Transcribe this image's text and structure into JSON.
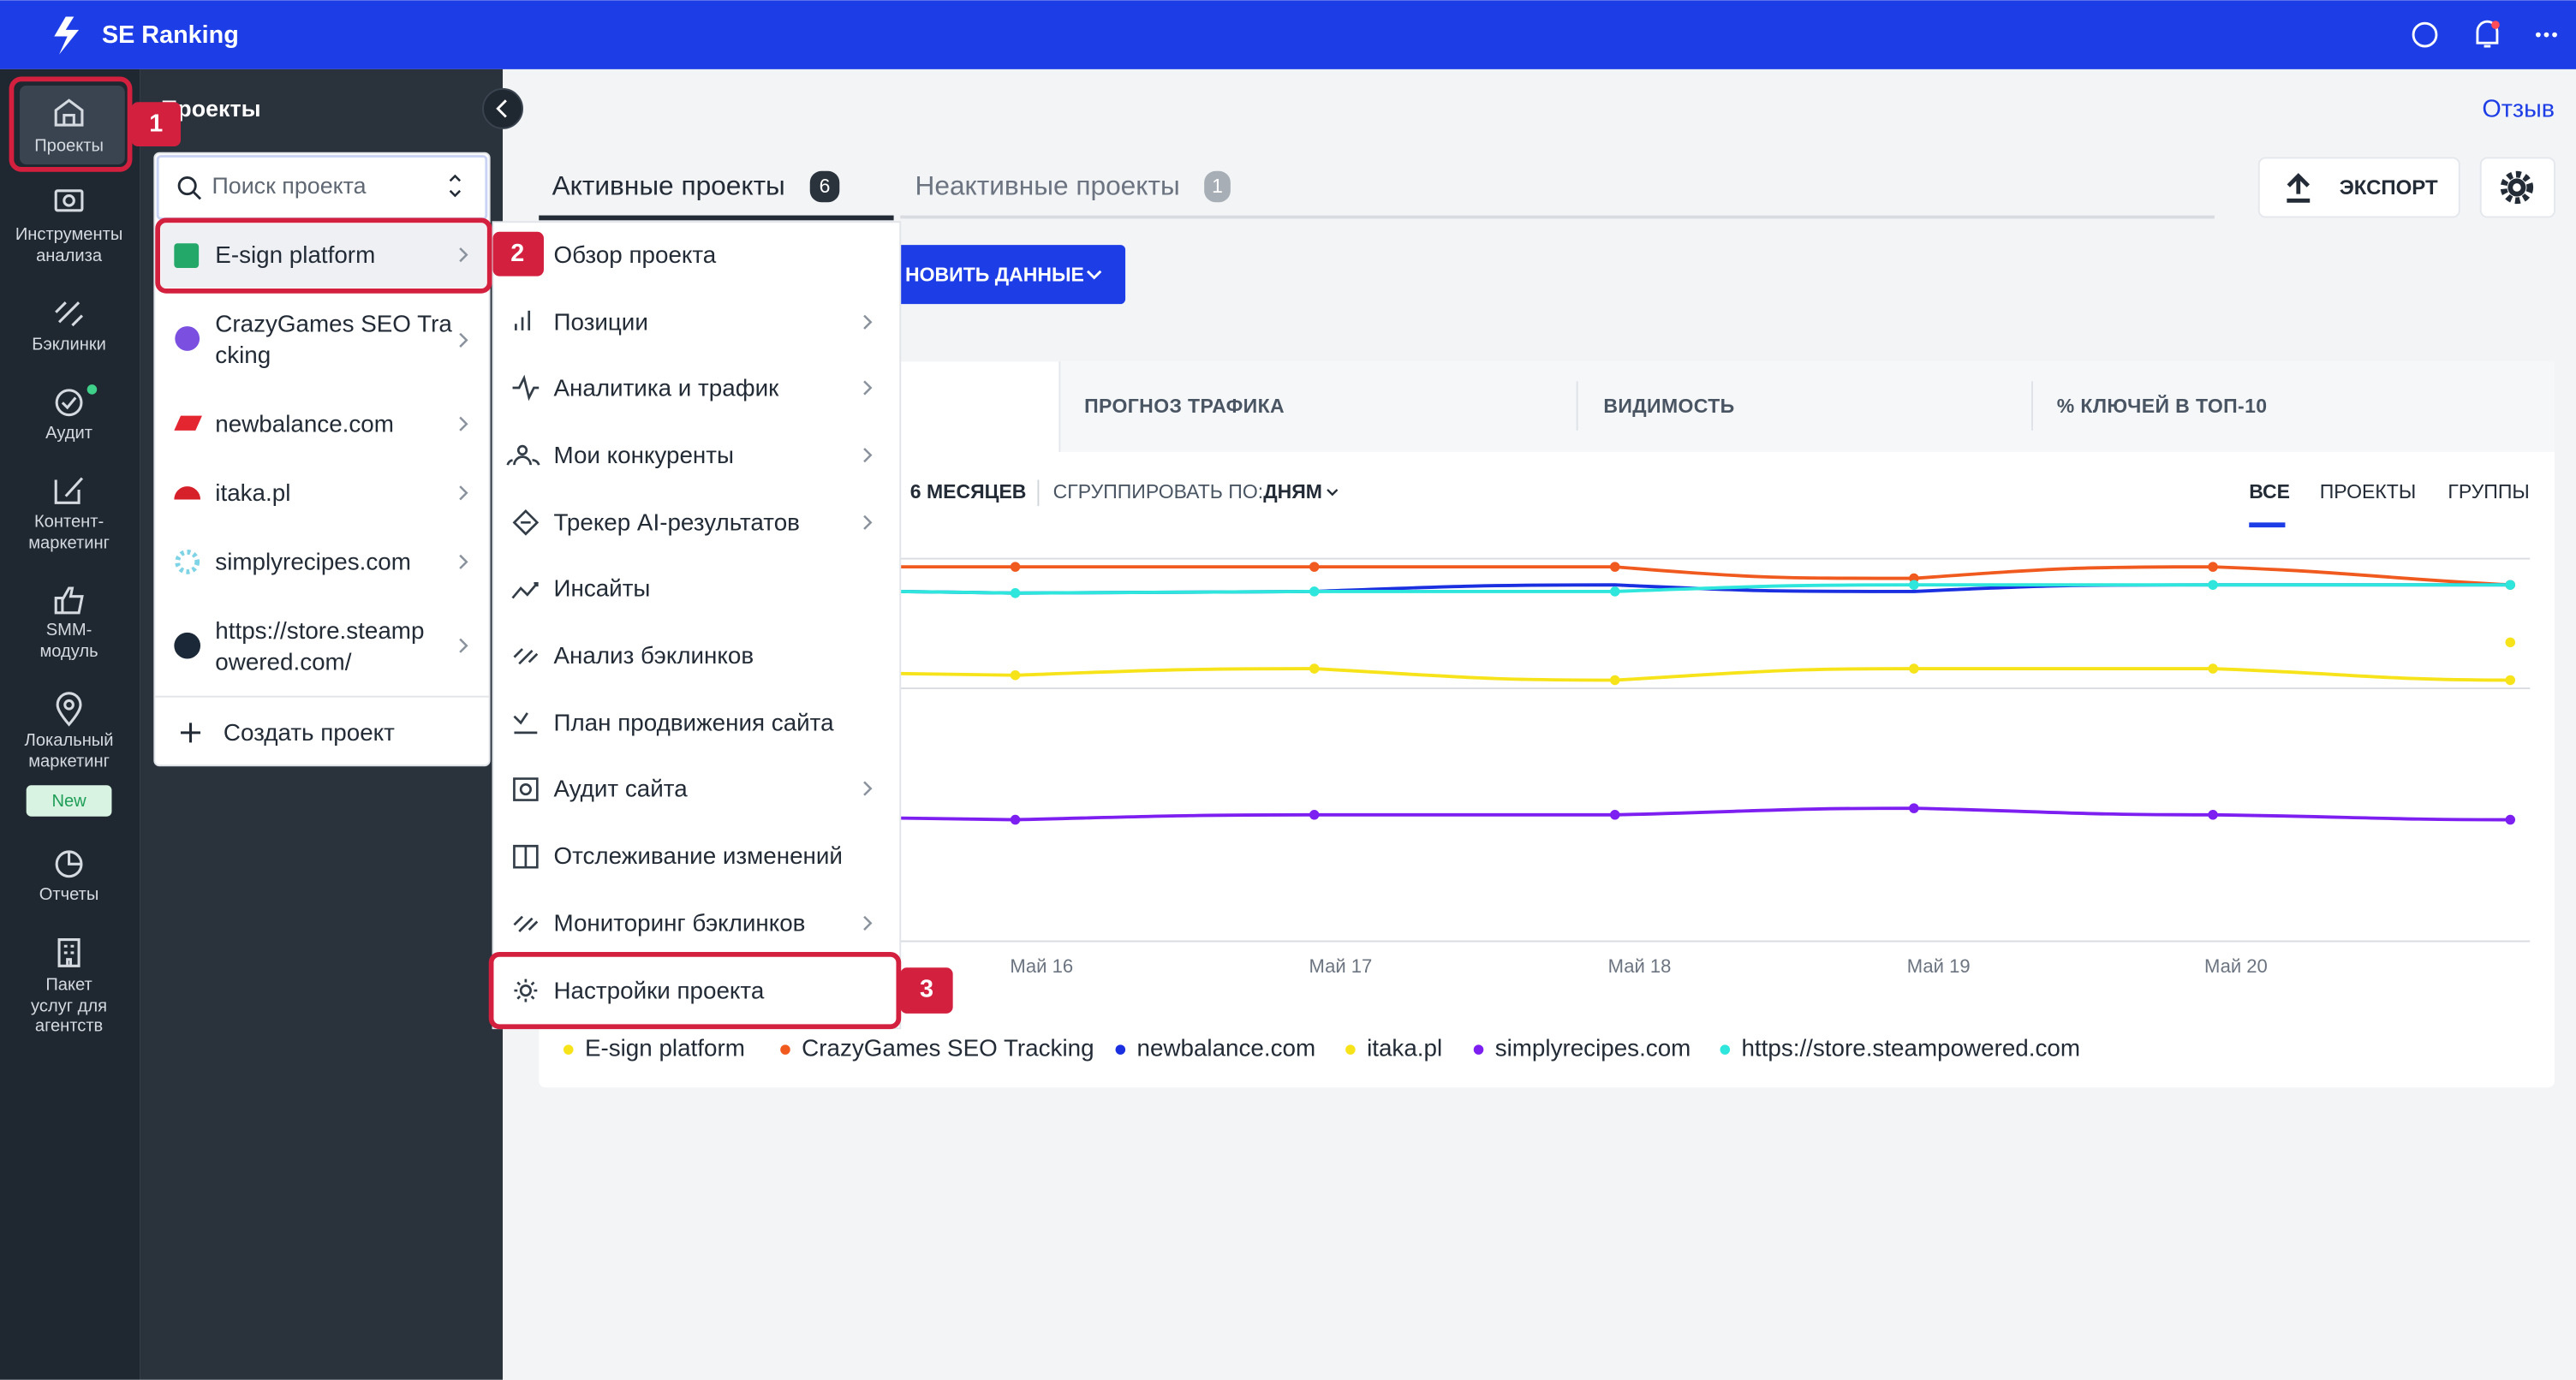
{
  "header": {
    "brand": "SE Ranking"
  },
  "sidebar": {
    "items": [
      {
        "label_lines": [
          "Проекты"
        ]
      },
      {
        "label_lines": [
          "Инструменты",
          "анализа"
        ]
      },
      {
        "label_lines": [
          "Бэклинки"
        ]
      },
      {
        "label_lines": [
          "Аудит"
        ]
      },
      {
        "label_lines": [
          "Контент-",
          "маркетинг"
        ]
      },
      {
        "label_lines": [
          "SMM-",
          "модуль"
        ]
      },
      {
        "label_lines": [
          "Локальный",
          "маркетинг"
        ]
      },
      {
        "label_lines": [
          "Отчеты"
        ]
      },
      {
        "label_lines": [
          "Пакет",
          "услуг для",
          "агентств"
        ]
      }
    ],
    "new_badge": "New"
  },
  "steps": [
    1,
    2,
    3
  ],
  "projects_panel": {
    "title": "Проекты",
    "search_placeholder": "Поиск проекта",
    "projects": [
      {
        "name_lines": [
          "E-sign platform"
        ]
      },
      {
        "name_lines": [
          "CrazyGames SEO Tra",
          "cking"
        ]
      },
      {
        "name_lines": [
          "newbalance.com"
        ]
      },
      {
        "name_lines": [
          "itaka.pl"
        ]
      },
      {
        "name_lines": [
          "simplyrecipes.com"
        ]
      },
      {
        "name_lines": [
          "https://store.steamp",
          "owered.com/"
        ]
      }
    ],
    "create": "Создать проект"
  },
  "project_menu": {
    "items": [
      "Обзор проекта",
      "Позиции",
      "Аналитика и трафик",
      "Мои конкуренты",
      "Трекер AI-результатов",
      "Инсайты",
      "Анализ бэклинков",
      "План продвижения сайта",
      "Аудит сайта",
      "Отслеживание изменений",
      "Мониторинг бэклинков",
      "Настройки проекта"
    ]
  },
  "main": {
    "feedback": "Отзыв",
    "tabs": [
      {
        "label": "Активные проекты",
        "count": 6
      },
      {
        "label": "Неактивные проекты",
        "count": 1
      }
    ],
    "export": "ЭКСПОРТ",
    "update": "НОВИТЬ ДАННЫЕ",
    "metric_tabs": [
      "ПРОГНОЗ ТРАФИКА",
      "ВИДИМОСТЬ",
      "% КЛЮЧЕЙ В ТОП-10"
    ],
    "period": "6 МЕСЯЦЕВ",
    "group_by": "СГРУППИРОВАТЬ ПО:",
    "group_value": "ДНЯМ",
    "view_tabs": [
      "ВСЕ",
      "ПРОЕКТЫ",
      "ГРУППЫ"
    ],
    "x_labels": [
      "Май 16",
      "Май 17",
      "Май 18",
      "Май 19",
      "Май 20"
    ],
    "legend": [
      "E-sign platform",
      "CrazyGames SEO Tracking",
      "newbalance.com",
      "itaka.pl",
      "simplyrecipes.com",
      "https://store.steampowered.com"
    ]
  }
}
